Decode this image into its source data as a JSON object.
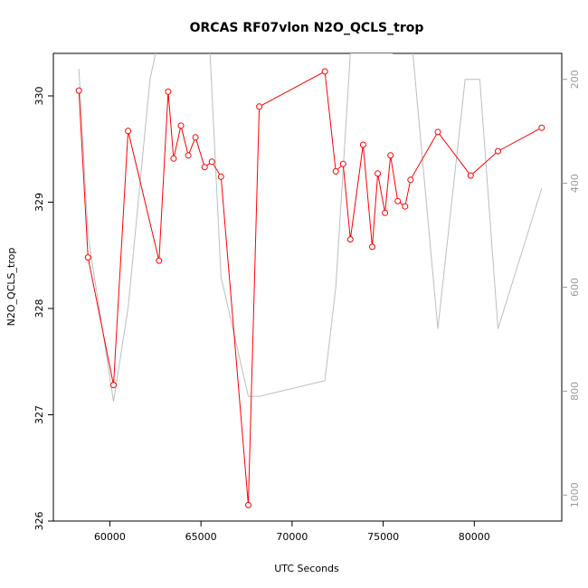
{
  "chart_data": {
    "type": "line",
    "title": "ORCAS RF07vlon N2O_QCLS_trop",
    "xlabel": "UTC Seconds",
    "ylabel": "N2O_QCLS_trop",
    "xlim": [
      56900,
      84800
    ],
    "ylim": [
      326,
      330.4
    ],
    "y2lim": [
      1050,
      150
    ],
    "xticks": [
      60000,
      65000,
      70000,
      75000,
      80000
    ],
    "xtick_labels": [
      "60000",
      "65000",
      "70000",
      "75000",
      "80000"
    ],
    "yticks": [
      326,
      327,
      328,
      329,
      330
    ],
    "ytick_labels": [
      "326",
      "327",
      "328",
      "329",
      "330"
    ],
    "y2ticks": [
      200,
      400,
      600,
      800,
      1000
    ],
    "y2tick_labels": [
      "200",
      "400",
      "600",
      "800",
      "1000"
    ],
    "grid": false,
    "series": [
      {
        "axis": "left",
        "color": "#ff0000",
        "marker": "open-circle",
        "x": [
          58300,
          58800,
          60200,
          61000,
          62700,
          63200,
          63500,
          63900,
          64300,
          64700,
          65200,
          65600,
          66100,
          67600,
          68200,
          71800,
          72400,
          72800,
          73200,
          73900,
          74400,
          74700,
          75100,
          75400,
          75800,
          76200,
          76500,
          78000,
          79800,
          81300,
          83700
        ],
        "y": [
          330.05,
          328.48,
          327.28,
          329.67,
          328.45,
          330.04,
          329.41,
          329.72,
          329.44,
          329.61,
          329.33,
          329.38,
          329.24,
          326.15,
          329.9,
          330.23,
          329.29,
          329.36,
          328.65,
          329.54,
          328.58,
          329.27,
          328.9,
          329.44,
          329.01,
          328.96,
          329.21,
          329.66,
          329.25,
          329.48,
          329.7
        ]
      },
      {
        "axis": "right",
        "color": "#bebebe",
        "marker": "none",
        "x": [
          58300,
          58800,
          60200,
          61000,
          62200,
          62700,
          64100,
          65500,
          66100,
          67600,
          68200,
          71800,
          72400,
          73200,
          73900,
          75500,
          76500,
          78000,
          79500,
          80300,
          81300,
          83700
        ],
        "y": [
          180,
          500,
          820,
          640,
          200,
          120,
          120,
          150,
          580,
          810,
          810,
          780,
          600,
          150,
          150,
          150,
          100,
          680,
          200,
          200,
          680,
          410
        ]
      }
    ]
  }
}
